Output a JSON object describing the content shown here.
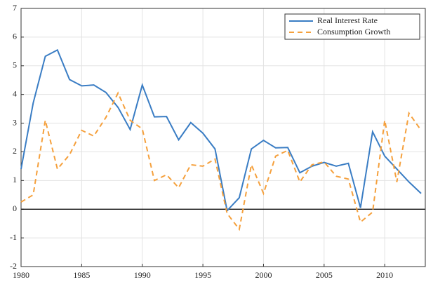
{
  "chart_data": {
    "type": "line",
    "x": [
      1980,
      1981,
      1982,
      1983,
      1984,
      1985,
      1986,
      1987,
      1988,
      1989,
      1990,
      1991,
      1992,
      1993,
      1994,
      1995,
      1996,
      1997,
      1998,
      1999,
      2000,
      2001,
      2002,
      2003,
      2004,
      2005,
      2006,
      2007,
      2008,
      2009,
      2010,
      2011,
      2012,
      2013
    ],
    "series": [
      {
        "name": "Real Interest Rate",
        "color": "#3a7dc4",
        "dash": false,
        "values": [
          1.4,
          3.7,
          5.33,
          5.55,
          4.52,
          4.3,
          4.33,
          4.07,
          3.55,
          2.78,
          4.33,
          3.22,
          3.23,
          2.42,
          3.02,
          2.65,
          2.1,
          -0.05,
          0.4,
          2.1,
          2.4,
          2.14,
          2.15,
          1.27,
          1.5,
          1.63,
          1.5,
          1.6,
          0.05,
          2.7,
          1.85,
          1.4,
          0.95,
          0.55
        ]
      },
      {
        "name": "Consumption Growth",
        "color": "#f5a03c",
        "dash": true,
        "values": [
          0.25,
          0.5,
          3.1,
          1.4,
          1.9,
          2.75,
          2.55,
          3.2,
          4.05,
          3.1,
          2.8,
          1.0,
          1.2,
          0.75,
          1.55,
          1.5,
          1.75,
          -0.15,
          -0.7,
          1.55,
          0.55,
          1.85,
          2.05,
          0.95,
          1.55,
          1.65,
          1.15,
          1.05,
          -0.45,
          -0.1,
          3.1,
          0.95,
          3.35,
          2.75
        ]
      }
    ],
    "xlim": [
      1980,
      2013
    ],
    "xticks": [
      1980,
      1985,
      1990,
      1995,
      2000,
      2005,
      2010
    ],
    "ylim": [
      -2,
      7
    ],
    "yticks": [
      -2,
      -1,
      0,
      1,
      2,
      3,
      4,
      5,
      6,
      7
    ],
    "grid": true,
    "legend": "top-right"
  }
}
